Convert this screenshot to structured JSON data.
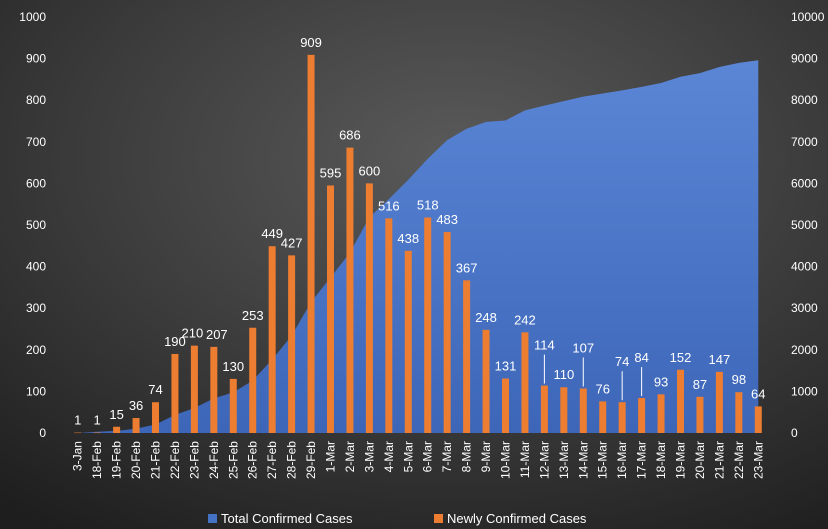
{
  "chart_data": {
    "type": "bar",
    "title": "",
    "xlabel": "",
    "ylabel": "",
    "y2label": "",
    "categories": [
      "3-Jan",
      "18-Feb",
      "19-Feb",
      "20-Feb",
      "21-Feb",
      "22-Feb",
      "23-Feb",
      "24-Feb",
      "25-Feb",
      "26-Feb",
      "27-Feb",
      "28-Feb",
      "29-Feb",
      "1-Mar",
      "2-Mar",
      "3-Mar",
      "4-Mar",
      "5-Mar",
      "6-Mar",
      "7-Mar",
      "8-Mar",
      "9-Mar",
      "10-Mar",
      "11-Mar",
      "12-Mar",
      "13-Mar",
      "14-Mar",
      "15-Mar",
      "16-Mar",
      "17-Mar",
      "18-Mar",
      "19-Mar",
      "20-Mar",
      "21-Mar",
      "22-Mar",
      "23-Mar"
    ],
    "ylim": [
      0,
      1000
    ],
    "y2lim": [
      0,
      10000
    ],
    "yticks": [
      "0",
      "100",
      "200",
      "300",
      "400",
      "500",
      "600",
      "700",
      "800",
      "900",
      "1000"
    ],
    "y2ticks": [
      "0",
      "1000",
      "2000",
      "3000",
      "4000",
      "5000",
      "6000",
      "7000",
      "8000",
      "9000",
      "10000"
    ],
    "grid": false,
    "legend_position": "bottom",
    "series": [
      {
        "name": "Total Confirmed Cases",
        "kind": "area",
        "axis": "right",
        "color": "#4472c4",
        "values": [
          1,
          31,
          51,
          104,
          204,
          433,
          602,
          833,
          977,
          1261,
          1766,
          2337,
          3150,
          3736,
          4335,
          5186,
          5621,
          6088,
          6593,
          7041,
          7313,
          7478,
          7513,
          7755,
          7869,
          7979,
          8086,
          8162,
          8236,
          8320,
          8413,
          8565,
          8652,
          8799,
          8897,
          8961
        ]
      },
      {
        "name": "Newly Confirmed Cases",
        "kind": "bar",
        "axis": "left",
        "color": "#ed7d31",
        "values": [
          1,
          1,
          15,
          36,
          74,
          190,
          210,
          207,
          130,
          253,
          449,
          427,
          909,
          595,
          686,
          600,
          516,
          438,
          518,
          483,
          367,
          248,
          131,
          242,
          114,
          110,
          107,
          76,
          74,
          84,
          93,
          152,
          87,
          147,
          98,
          64
        ],
        "labels": [
          "1",
          "1",
          "15",
          "36",
          "74",
          "190",
          "210",
          "207",
          "130",
          "253",
          "449",
          "427",
          "909",
          "595",
          "686",
          "600",
          "516",
          "438",
          "518",
          "483",
          "367",
          "248",
          "131",
          "242",
          "114",
          "110",
          "107",
          "76",
          "74",
          "84",
          "93",
          "152",
          "87",
          "147",
          "98",
          "64"
        ]
      }
    ]
  },
  "colors": {
    "background_dark": "#262626",
    "background_light": "#4d4d4d",
    "text": "#ffffff",
    "area": "#4472c4",
    "bars": "#ed7d31"
  }
}
